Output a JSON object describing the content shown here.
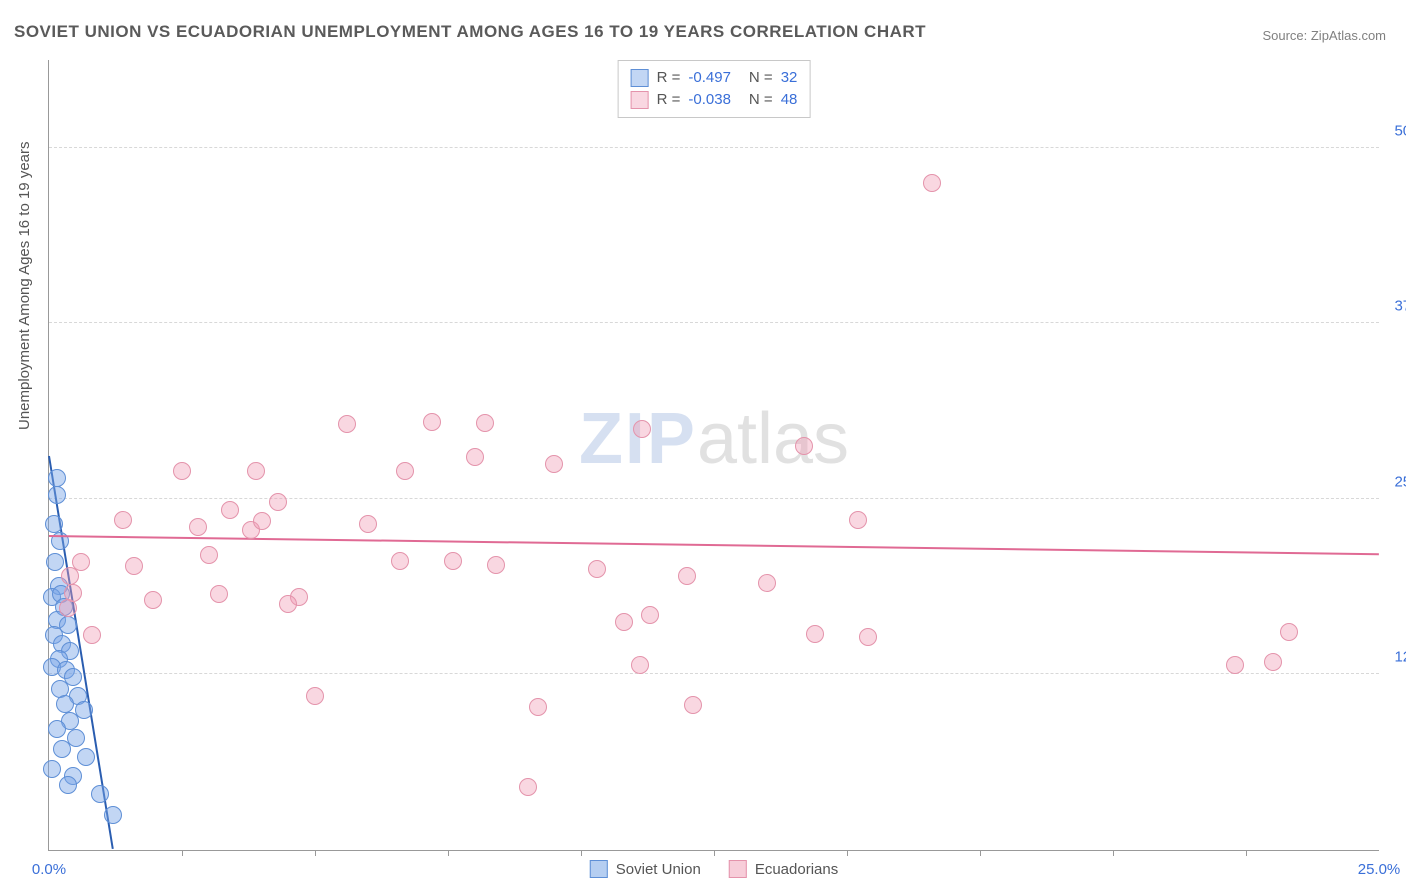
{
  "title": "SOVIET UNION VS ECUADORIAN UNEMPLOYMENT AMONG AGES 16 TO 19 YEARS CORRELATION CHART",
  "source": "Source: ZipAtlas.com",
  "ylabel": "Unemployment Among Ages 16 to 19 years",
  "watermark_a": "ZIP",
  "watermark_b": "atlas",
  "chart": {
    "type": "scatter",
    "background_color": "#ffffff",
    "grid_color": "#d8d8d8",
    "border_color": "#999999",
    "xlim": [
      0,
      25
    ],
    "ylim": [
      0,
      56.25
    ],
    "xtick_labels": [
      {
        "v": 0,
        "label": "0.0%"
      },
      {
        "v": 25,
        "label": "25.0%"
      }
    ],
    "ytick_labels": [
      {
        "v": 12.5,
        "label": "12.5%"
      },
      {
        "v": 25.0,
        "label": "25.0%"
      },
      {
        "v": 37.5,
        "label": "37.5%"
      },
      {
        "v": 50.0,
        "label": "50.0%"
      }
    ],
    "xtick_minor": [
      2.5,
      5,
      7.5,
      10,
      12.5,
      15,
      17.5,
      20,
      22.5
    ],
    "marker_radius": 9,
    "marker_border_width": 1.5,
    "series": [
      {
        "name": "Soviet Union",
        "fill": "rgba(120,165,230,0.45)",
        "stroke": "#5e8fd6",
        "r_value": "-0.497",
        "n_value": "32",
        "trend": {
          "x1": 0,
          "y1": 28.0,
          "x2": 1.2,
          "y2": 0,
          "color": "#2a5db0",
          "width": 2
        },
        "points": [
          [
            0.15,
            26.5
          ],
          [
            0.15,
            25.3
          ],
          [
            0.1,
            23.2
          ],
          [
            0.2,
            22.0
          ],
          [
            0.12,
            20.5
          ],
          [
            0.18,
            18.8
          ],
          [
            0.05,
            18.0
          ],
          [
            0.22,
            18.2
          ],
          [
            0.28,
            17.3
          ],
          [
            0.15,
            16.4
          ],
          [
            0.35,
            16.0
          ],
          [
            0.1,
            15.3
          ],
          [
            0.25,
            14.7
          ],
          [
            0.4,
            14.2
          ],
          [
            0.18,
            13.6
          ],
          [
            0.05,
            13.0
          ],
          [
            0.32,
            12.8
          ],
          [
            0.45,
            12.3
          ],
          [
            0.2,
            11.5
          ],
          [
            0.55,
            11.0
          ],
          [
            0.3,
            10.4
          ],
          [
            0.65,
            10.0
          ],
          [
            0.4,
            9.2
          ],
          [
            0.15,
            8.6
          ],
          [
            0.5,
            8.0
          ],
          [
            0.25,
            7.2
          ],
          [
            0.7,
            6.6
          ],
          [
            0.05,
            5.8
          ],
          [
            0.45,
            5.3
          ],
          [
            0.35,
            4.6
          ],
          [
            0.95,
            4.0
          ],
          [
            1.2,
            2.5
          ]
        ]
      },
      {
        "name": "Ecuadorians",
        "fill": "rgba(240,155,180,0.4)",
        "stroke": "#e493ab",
        "r_value": "-0.038",
        "n_value": "48",
        "trend": {
          "x1": 0,
          "y1": 22.3,
          "x2": 25,
          "y2": 21.0,
          "color": "#e06a94",
          "width": 2
        },
        "points": [
          [
            0.4,
            19.5
          ],
          [
            0.45,
            18.3
          ],
          [
            0.35,
            17.2
          ],
          [
            0.6,
            20.5
          ],
          [
            0.8,
            15.3
          ],
          [
            1.4,
            23.5
          ],
          [
            1.6,
            20.2
          ],
          [
            1.95,
            17.8
          ],
          [
            2.5,
            27.0
          ],
          [
            2.8,
            23.0
          ],
          [
            3.2,
            18.2
          ],
          [
            3.4,
            24.2
          ],
          [
            3.8,
            22.8
          ],
          [
            3.9,
            27.0
          ],
          [
            4.0,
            23.4
          ],
          [
            4.3,
            24.8
          ],
          [
            4.7,
            18.0
          ],
          [
            5.0,
            11.0
          ],
          [
            5.6,
            30.3
          ],
          [
            6.6,
            20.6
          ],
          [
            6.7,
            27.0
          ],
          [
            7.2,
            30.5
          ],
          [
            7.6,
            20.6
          ],
          [
            8.0,
            28.0
          ],
          [
            8.2,
            30.4
          ],
          [
            8.4,
            20.3
          ],
          [
            9.0,
            4.5
          ],
          [
            9.2,
            10.2
          ],
          [
            9.5,
            27.5
          ],
          [
            10.3,
            20.0
          ],
          [
            10.8,
            16.2
          ],
          [
            11.1,
            13.2
          ],
          [
            11.15,
            30.0
          ],
          [
            11.3,
            16.7
          ],
          [
            12.0,
            19.5
          ],
          [
            12.1,
            10.3
          ],
          [
            13.5,
            19.0
          ],
          [
            14.2,
            28.8
          ],
          [
            14.4,
            15.4
          ],
          [
            15.2,
            23.5
          ],
          [
            15.4,
            15.2
          ],
          [
            16.6,
            47.5
          ],
          [
            22.3,
            13.2
          ],
          [
            23.0,
            13.4
          ],
          [
            23.3,
            15.5
          ],
          [
            4.5,
            17.5
          ],
          [
            6.0,
            23.2
          ],
          [
            3.0,
            21.0
          ]
        ]
      }
    ],
    "legend_top_labels": {
      "R": "R =",
      "N": "N ="
    },
    "legend_bottom": [
      {
        "label": "Soviet Union",
        "fill": "rgba(120,165,230,0.55)",
        "stroke": "#5e8fd6"
      },
      {
        "label": "Ecuadorians",
        "fill": "rgba(240,155,180,0.5)",
        "stroke": "#e493ab"
      }
    ]
  }
}
